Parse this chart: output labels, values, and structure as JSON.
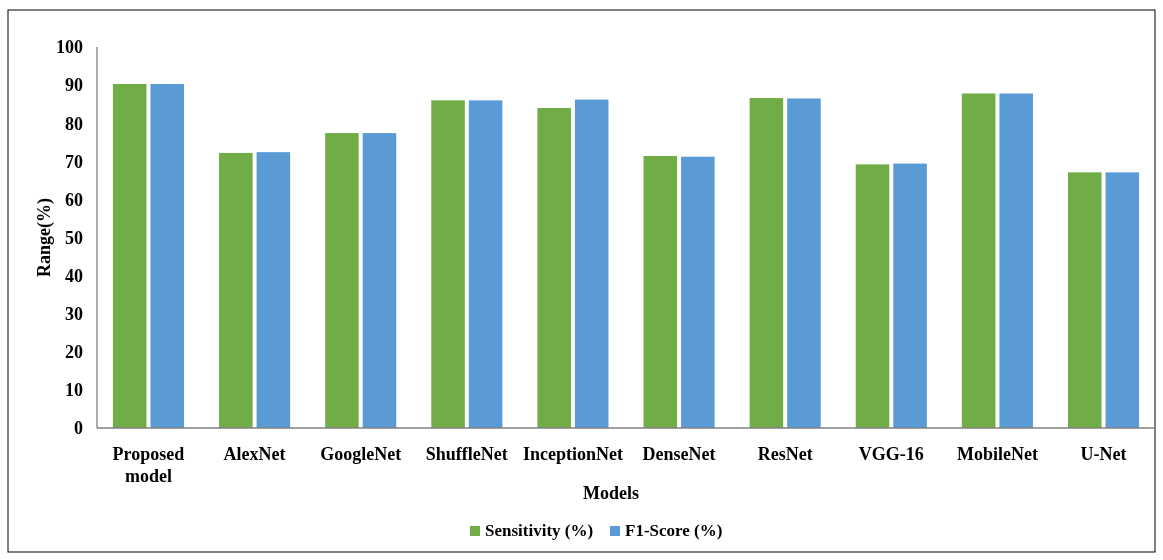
{
  "chart_data": {
    "type": "bar",
    "xlabel": "Models",
    "ylabel": "Range(%)",
    "categories": [
      "Proposed model",
      "AlexNet",
      "GoogleNet",
      "ShuffleNet",
      "InceptionNet",
      "DenseNet",
      "ResNet",
      "VGG-16",
      "MobileNet",
      "U-Net"
    ],
    "series": [
      {
        "name": "Sensitivity (%)",
        "color": "#70ad47",
        "values": [
          90.3,
          72.2,
          77.4,
          86.0,
          84.0,
          71.4,
          86.6,
          69.2,
          87.8,
          67.1
        ]
      },
      {
        "name": "F1-Score (%)",
        "color": "#5b9bd5",
        "values": [
          90.3,
          72.4,
          77.4,
          86.0,
          86.2,
          71.2,
          86.5,
          69.4,
          87.8,
          67.1
        ]
      }
    ],
    "ylim": [
      0,
      100
    ],
    "yticks": [
      0,
      10,
      20,
      30,
      40,
      50,
      60,
      70,
      80,
      90,
      100
    ],
    "grid": false,
    "legend": "bottom"
  }
}
